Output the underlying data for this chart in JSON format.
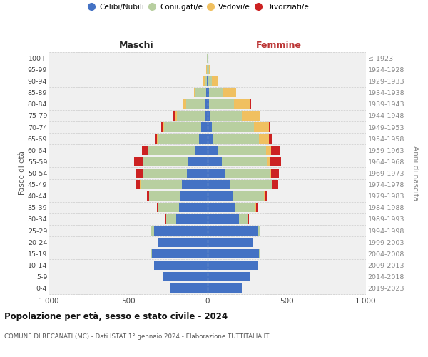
{
  "age_groups": [
    "0-4",
    "5-9",
    "10-14",
    "15-19",
    "20-24",
    "25-29",
    "30-34",
    "35-39",
    "40-44",
    "45-49",
    "50-54",
    "55-59",
    "60-64",
    "65-69",
    "70-74",
    "75-79",
    "80-84",
    "85-89",
    "90-94",
    "95-99",
    "100+"
  ],
  "birth_years": [
    "2019-2023",
    "2014-2018",
    "2009-2013",
    "2004-2008",
    "1999-2003",
    "1994-1998",
    "1989-1993",
    "1984-1988",
    "1979-1983",
    "1974-1978",
    "1969-1973",
    "1964-1968",
    "1959-1963",
    "1954-1958",
    "1949-1953",
    "1944-1948",
    "1939-1943",
    "1934-1938",
    "1929-1933",
    "1924-1928",
    "≤ 1923"
  ],
  "male": {
    "celibi": [
      240,
      285,
      340,
      350,
      310,
      340,
      200,
      180,
      170,
      160,
      130,
      120,
      80,
      55,
      40,
      20,
      15,
      10,
      5,
      2,
      2
    ],
    "coniugati": [
      0,
      0,
      0,
      5,
      5,
      18,
      60,
      130,
      200,
      265,
      280,
      285,
      295,
      260,
      235,
      175,
      120,
      65,
      15,
      4,
      2
    ],
    "vedovi": [
      0,
      0,
      0,
      0,
      0,
      0,
      0,
      1,
      1,
      2,
      2,
      2,
      3,
      5,
      8,
      14,
      18,
      12,
      5,
      2,
      0
    ],
    "divorziati": [
      0,
      0,
      0,
      0,
      0,
      2,
      5,
      10,
      14,
      25,
      40,
      55,
      38,
      15,
      10,
      5,
      5,
      0,
      0,
      0,
      0
    ]
  },
  "female": {
    "nubili": [
      215,
      270,
      320,
      325,
      285,
      315,
      200,
      175,
      160,
      140,
      110,
      90,
      65,
      38,
      28,
      15,
      10,
      10,
      5,
      2,
      2
    ],
    "coniugate": [
      0,
      0,
      0,
      4,
      5,
      18,
      58,
      128,
      198,
      265,
      280,
      290,
      305,
      285,
      265,
      200,
      155,
      85,
      22,
      5,
      2
    ],
    "vedove": [
      0,
      0,
      0,
      0,
      0,
      0,
      0,
      2,
      3,
      6,
      10,
      15,
      32,
      65,
      95,
      115,
      105,
      85,
      42,
      10,
      2
    ],
    "divorziate": [
      0,
      0,
      0,
      0,
      0,
      2,
      5,
      10,
      15,
      35,
      50,
      70,
      55,
      20,
      10,
      5,
      5,
      0,
      0,
      0,
      0
    ]
  },
  "colors": {
    "celibi": "#4472c4",
    "coniugati": "#b8cfa0",
    "vedovi": "#f0c060",
    "divorziati": "#cc2222"
  },
  "title": "Popolazione per età, sesso e stato civile - 2024",
  "subtitle": "COMUNE DI RECANATI (MC) - Dati ISTAT 1° gennaio 2024 - Elaborazione TUTTITALIA.IT",
  "male_label": "Maschi",
  "female_label": "Femmine",
  "ylabel_left": "Fasce di età",
  "ylabel_right": "Anni di nascita",
  "legend_labels": [
    "Celibi/Nubili",
    "Coniugati/e",
    "Vedovi/e",
    "Divorziati/e"
  ],
  "xlim": 1000,
  "bg_color": "#f0f0f0"
}
